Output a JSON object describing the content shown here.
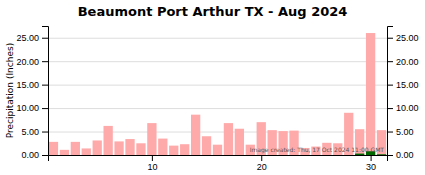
{
  "chart_data": {
    "type": "bar",
    "title": "Beaumont Port Arthur TX - Aug 2024",
    "y_label": "Precipitation (Inches)",
    "annotations": [
      "Image created: Thu, 17 Oct 2024 11:00 GMT"
    ],
    "x": [
      1,
      2,
      3,
      4,
      5,
      6,
      7,
      8,
      9,
      10,
      11,
      12,
      13,
      14,
      15,
      16,
      17,
      18,
      19,
      20,
      21,
      22,
      23,
      24,
      25,
      26,
      27,
      28,
      29,
      30,
      31
    ],
    "series": [
      {
        "color": "#ffaaaa",
        "values": [
          2.8,
          1.1,
          2.8,
          1.4,
          3.1,
          6.2,
          2.9,
          3.4,
          2.5,
          6.8,
          3.5,
          2.0,
          2.3,
          8.6,
          4.0,
          2.2,
          6.8,
          5.6,
          2.2,
          7.0,
          5.3,
          5.1,
          5.2,
          1.5,
          1.8,
          2.6,
          2.5,
          9.0,
          5.5,
          26.0,
          5.3
        ]
      },
      {
        "color": "#006600",
        "values": [
          0,
          0,
          0,
          0,
          0,
          0,
          0,
          0,
          0,
          0,
          0,
          0,
          0,
          0,
          0,
          0,
          0,
          0,
          0,
          0,
          0,
          0,
          0,
          0,
          0,
          0,
          0,
          0,
          0.3,
          0.8,
          0.15
        ]
      }
    ],
    "xlim": [
      0.5,
      31.5
    ],
    "xticks": [
      10,
      20,
      30
    ],
    "ylim": [
      0.0,
      27.5
    ],
    "yticks": [
      {
        "value": 0.0,
        "label": "0.00"
      },
      {
        "value": 5.0,
        "label": "5.00"
      },
      {
        "value": 10.0,
        "label": "10.00"
      },
      {
        "value": 15.0,
        "label": "15.00"
      },
      {
        "value": 20.0,
        "label": "20.00"
      },
      {
        "value": 25.0,
        "label": "25.00"
      }
    ],
    "grid": true
  }
}
